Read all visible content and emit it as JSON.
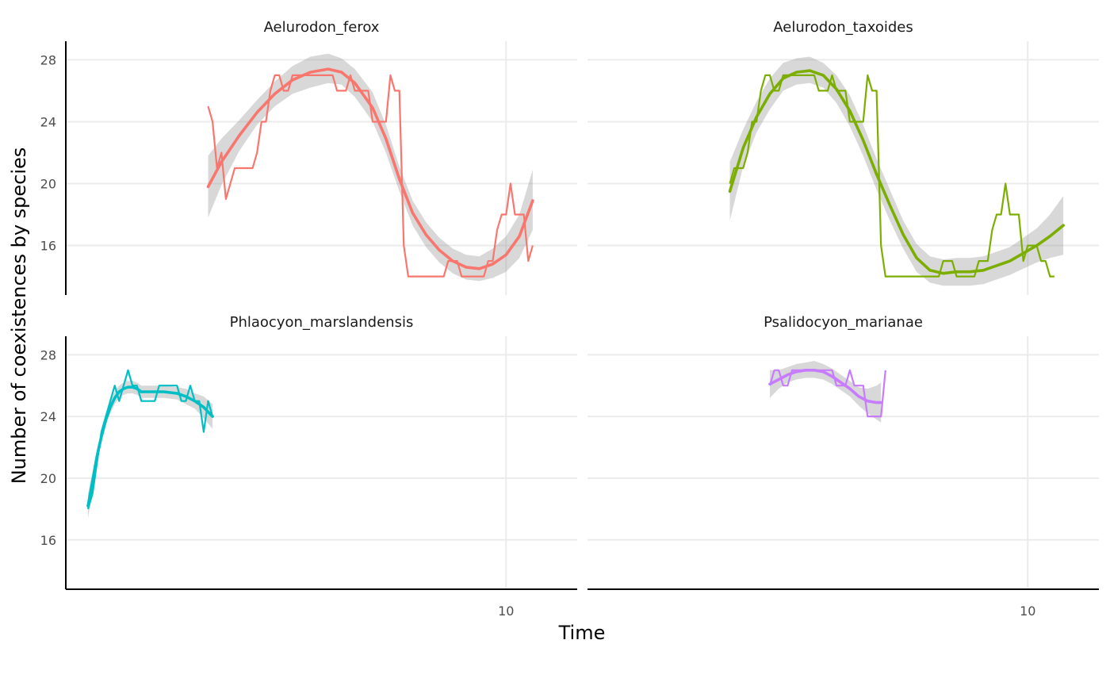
{
  "chart_data": {
    "type": "line",
    "xlabel": "Time",
    "ylabel": "Number of coexistences by species",
    "ylim": [
      12.8,
      29.2
    ],
    "y_ticks": [
      "16",
      "20",
      "24",
      "28"
    ],
    "y_tick_values": [
      16,
      20,
      24,
      28
    ],
    "x_ticks": [
      "10"
    ],
    "x_tick_values": [
      10
    ],
    "xlim": [
      0.1,
      11.6
    ],
    "grid": true,
    "legend": "none",
    "panels": [
      {
        "name": "Aelurodon_ferox",
        "color": "#F8766D",
        "raw": [
          [
            3.3,
            25
          ],
          [
            3.4,
            24
          ],
          [
            3.5,
            21
          ],
          [
            3.6,
            22
          ],
          [
            3.7,
            19
          ],
          [
            3.9,
            21
          ],
          [
            4.3,
            21
          ],
          [
            4.4,
            22
          ],
          [
            4.5,
            24
          ],
          [
            4.6,
            24
          ],
          [
            4.7,
            26
          ],
          [
            4.8,
            27
          ],
          [
            4.9,
            27
          ],
          [
            5.0,
            26
          ],
          [
            5.1,
            26
          ],
          [
            5.2,
            27
          ],
          [
            6.1,
            27
          ],
          [
            6.2,
            26
          ],
          [
            6.4,
            26
          ],
          [
            6.5,
            27
          ],
          [
            6.6,
            26
          ],
          [
            6.9,
            26
          ],
          [
            7.0,
            24
          ],
          [
            7.3,
            24
          ],
          [
            7.4,
            27
          ],
          [
            7.5,
            26
          ],
          [
            7.6,
            26
          ],
          [
            7.7,
            16
          ],
          [
            7.8,
            14
          ],
          [
            8.6,
            14
          ],
          [
            8.7,
            15
          ],
          [
            8.9,
            15
          ],
          [
            9.0,
            14
          ],
          [
            9.5,
            14
          ],
          [
            9.6,
            15
          ],
          [
            9.7,
            15
          ],
          [
            9.8,
            17
          ],
          [
            9.9,
            18
          ],
          [
            10.0,
            18
          ],
          [
            10.1,
            20
          ],
          [
            10.2,
            18
          ],
          [
            10.4,
            18
          ],
          [
            10.5,
            15
          ],
          [
            10.6,
            16
          ]
        ],
        "smooth": [
          [
            3.3,
            19.8
          ],
          [
            3.6,
            21.4
          ],
          [
            4.0,
            23.1
          ],
          [
            4.4,
            24.6
          ],
          [
            4.8,
            25.8
          ],
          [
            5.2,
            26.7
          ],
          [
            5.6,
            27.2
          ],
          [
            6.0,
            27.4
          ],
          [
            6.3,
            27.2
          ],
          [
            6.6,
            26.5
          ],
          [
            7.0,
            24.9
          ],
          [
            7.3,
            22.9
          ],
          [
            7.6,
            20.3
          ],
          [
            7.9,
            18.1
          ],
          [
            8.2,
            16.7
          ],
          [
            8.5,
            15.7
          ],
          [
            8.8,
            15.0
          ],
          [
            9.1,
            14.6
          ],
          [
            9.4,
            14.5
          ],
          [
            9.7,
            14.8
          ],
          [
            10.0,
            15.4
          ],
          [
            10.3,
            16.6
          ],
          [
            10.6,
            18.9
          ]
        ],
        "band": [
          [
            3.3,
            17.8,
            21.8
          ],
          [
            3.6,
            19.9,
            22.9
          ],
          [
            4.0,
            22.1,
            24.1
          ],
          [
            4.4,
            23.8,
            25.4
          ],
          [
            4.8,
            25.0,
            26.6
          ],
          [
            5.2,
            25.8,
            27.6
          ],
          [
            5.6,
            26.2,
            28.2
          ],
          [
            6.0,
            26.5,
            28.4
          ],
          [
            6.3,
            26.4,
            28.1
          ],
          [
            6.6,
            25.6,
            27.4
          ],
          [
            7.0,
            24.0,
            25.9
          ],
          [
            7.3,
            22.0,
            23.8
          ],
          [
            7.6,
            19.5,
            21.1
          ],
          [
            7.9,
            17.3,
            18.9
          ],
          [
            8.2,
            15.9,
            17.5
          ],
          [
            8.5,
            14.9,
            16.5
          ],
          [
            8.8,
            14.2,
            15.8
          ],
          [
            9.1,
            13.8,
            15.4
          ],
          [
            9.4,
            13.7,
            15.3
          ],
          [
            9.7,
            13.9,
            15.8
          ],
          [
            10.0,
            14.3,
            16.6
          ],
          [
            10.3,
            15.2,
            18.0
          ],
          [
            10.6,
            17.0,
            20.9
          ]
        ]
      },
      {
        "name": "Aelurodon_taxoides",
        "color": "#7CAE00",
        "raw": [
          [
            3.3,
            20
          ],
          [
            3.4,
            21
          ],
          [
            3.6,
            21
          ],
          [
            3.7,
            22
          ],
          [
            3.8,
            24
          ],
          [
            3.9,
            24
          ],
          [
            4.0,
            26
          ],
          [
            4.1,
            27
          ],
          [
            4.2,
            27
          ],
          [
            4.3,
            26
          ],
          [
            4.4,
            26
          ],
          [
            4.5,
            27
          ],
          [
            5.2,
            27
          ],
          [
            5.3,
            26
          ],
          [
            5.5,
            26
          ],
          [
            5.6,
            27
          ],
          [
            5.7,
            26
          ],
          [
            5.9,
            26
          ],
          [
            6.0,
            24
          ],
          [
            6.3,
            24
          ],
          [
            6.4,
            27
          ],
          [
            6.5,
            26
          ],
          [
            6.6,
            26
          ],
          [
            6.7,
            16
          ],
          [
            6.8,
            14
          ],
          [
            8.0,
            14
          ],
          [
            8.1,
            15
          ],
          [
            8.3,
            15
          ],
          [
            8.4,
            14
          ],
          [
            8.8,
            14
          ],
          [
            8.9,
            15
          ],
          [
            9.1,
            15
          ],
          [
            9.2,
            17
          ],
          [
            9.3,
            18
          ],
          [
            9.4,
            18
          ],
          [
            9.5,
            20
          ],
          [
            9.6,
            18
          ],
          [
            9.8,
            18
          ],
          [
            9.9,
            15
          ],
          [
            10.0,
            16
          ],
          [
            10.2,
            16
          ],
          [
            10.3,
            15
          ],
          [
            10.4,
            15
          ],
          [
            10.5,
            14
          ],
          [
            10.6,
            14
          ]
        ],
        "smooth": [
          [
            3.3,
            19.5
          ],
          [
            3.6,
            22.3
          ],
          [
            3.9,
            24.3
          ],
          [
            4.2,
            25.8
          ],
          [
            4.5,
            26.8
          ],
          [
            4.8,
            27.2
          ],
          [
            5.1,
            27.3
          ],
          [
            5.4,
            27.0
          ],
          [
            5.7,
            26.1
          ],
          [
            6.0,
            24.7
          ],
          [
            6.3,
            22.8
          ],
          [
            6.6,
            20.6
          ],
          [
            6.9,
            18.6
          ],
          [
            7.2,
            16.7
          ],
          [
            7.5,
            15.2
          ],
          [
            7.8,
            14.4
          ],
          [
            8.1,
            14.2
          ],
          [
            8.4,
            14.3
          ],
          [
            8.7,
            14.3
          ],
          [
            9.0,
            14.4
          ],
          [
            9.3,
            14.7
          ],
          [
            9.6,
            15.0
          ],
          [
            9.9,
            15.5
          ],
          [
            10.2,
            16.0
          ],
          [
            10.5,
            16.6
          ],
          [
            10.8,
            17.3
          ]
        ],
        "band": [
          [
            3.3,
            17.6,
            21.4
          ],
          [
            3.6,
            21.1,
            23.5
          ],
          [
            3.9,
            23.3,
            25.3
          ],
          [
            4.2,
            24.8,
            26.8
          ],
          [
            4.5,
            26.0,
            27.8
          ],
          [
            4.8,
            26.4,
            28.1
          ],
          [
            5.1,
            26.5,
            28.2
          ],
          [
            5.4,
            26.2,
            27.8
          ],
          [
            5.7,
            25.2,
            27.0
          ],
          [
            6.0,
            23.7,
            25.7
          ],
          [
            6.3,
            21.8,
            23.8
          ],
          [
            6.6,
            19.6,
            21.6
          ],
          [
            6.9,
            17.6,
            19.6
          ],
          [
            7.2,
            15.8,
            17.6
          ],
          [
            7.5,
            14.3,
            16.1
          ],
          [
            7.8,
            13.6,
            15.3
          ],
          [
            8.1,
            13.4,
            15.1
          ],
          [
            8.4,
            13.4,
            15.2
          ],
          [
            8.7,
            13.4,
            15.2
          ],
          [
            9.0,
            13.5,
            15.3
          ],
          [
            9.3,
            13.8,
            15.6
          ],
          [
            9.6,
            14.1,
            15.9
          ],
          [
            9.9,
            14.5,
            16.5
          ],
          [
            10.2,
            14.9,
            17.1
          ],
          [
            10.5,
            15.2,
            18.0
          ],
          [
            10.8,
            15.4,
            19.2
          ]
        ]
      },
      {
        "name": "Phlaocyon_marslandensis",
        "color": "#00BFC4",
        "raw": [
          [
            0.6,
            18
          ],
          [
            0.7,
            19
          ],
          [
            0.8,
            21
          ],
          [
            0.9,
            23
          ],
          [
            1.0,
            24
          ],
          [
            1.1,
            25
          ],
          [
            1.2,
            26
          ],
          [
            1.3,
            25
          ],
          [
            1.4,
            26
          ],
          [
            1.5,
            27
          ],
          [
            1.6,
            26
          ],
          [
            1.7,
            26
          ],
          [
            1.8,
            25
          ],
          [
            2.1,
            25
          ],
          [
            2.2,
            26
          ],
          [
            2.6,
            26
          ],
          [
            2.7,
            25
          ],
          [
            2.8,
            25
          ],
          [
            2.9,
            26
          ],
          [
            3.0,
            25
          ],
          [
            3.1,
            25
          ],
          [
            3.2,
            23
          ],
          [
            3.3,
            25
          ],
          [
            3.4,
            24
          ]
        ],
        "smooth": [
          [
            0.6,
            18.2
          ],
          [
            0.7,
            19.8
          ],
          [
            0.8,
            21.4
          ],
          [
            0.9,
            22.7
          ],
          [
            1.0,
            23.8
          ],
          [
            1.1,
            24.6
          ],
          [
            1.2,
            25.2
          ],
          [
            1.3,
            25.6
          ],
          [
            1.4,
            25.8
          ],
          [
            1.5,
            25.9
          ],
          [
            1.6,
            25.9
          ],
          [
            1.7,
            25.8
          ],
          [
            1.8,
            25.6
          ],
          [
            2.0,
            25.6
          ],
          [
            2.3,
            25.6
          ],
          [
            2.6,
            25.5
          ],
          [
            2.8,
            25.3
          ],
          [
            3.0,
            25.0
          ],
          [
            3.2,
            24.6
          ],
          [
            3.4,
            24.0
          ]
        ],
        "band": [
          [
            0.6,
            17.4,
            19.0
          ],
          [
            0.7,
            19.2,
            20.4
          ],
          [
            0.8,
            20.9,
            21.9
          ],
          [
            0.9,
            22.3,
            23.1
          ],
          [
            1.0,
            23.4,
            24.2
          ],
          [
            1.1,
            24.2,
            25.0
          ],
          [
            1.2,
            24.8,
            25.6
          ],
          [
            1.3,
            25.2,
            26.0
          ],
          [
            1.4,
            25.4,
            26.2
          ],
          [
            1.5,
            25.5,
            26.3
          ],
          [
            1.6,
            25.5,
            26.3
          ],
          [
            1.7,
            25.4,
            26.2
          ],
          [
            1.8,
            25.2,
            26.0
          ],
          [
            2.0,
            25.2,
            26.0
          ],
          [
            2.3,
            25.2,
            26.0
          ],
          [
            2.6,
            25.1,
            25.9
          ],
          [
            2.8,
            24.8,
            25.8
          ],
          [
            3.0,
            24.5,
            25.5
          ],
          [
            3.2,
            23.9,
            25.3
          ],
          [
            3.4,
            23.2,
            24.8
          ]
        ]
      },
      {
        "name": "Psalidocyon_marianae",
        "color": "#C77CFF",
        "raw": [
          [
            4.2,
            26
          ],
          [
            4.3,
            27
          ],
          [
            4.4,
            27
          ],
          [
            4.5,
            26
          ],
          [
            4.6,
            26
          ],
          [
            4.7,
            27
          ],
          [
            5.6,
            27
          ],
          [
            5.7,
            26
          ],
          [
            5.9,
            26
          ],
          [
            6.0,
            27
          ],
          [
            6.1,
            26
          ],
          [
            6.3,
            26
          ],
          [
            6.4,
            24
          ],
          [
            6.7,
            24
          ],
          [
            6.8,
            27
          ]
        ],
        "smooth": [
          [
            4.2,
            26.1
          ],
          [
            4.4,
            26.4
          ],
          [
            4.6,
            26.7
          ],
          [
            4.8,
            26.9
          ],
          [
            5.0,
            27.0
          ],
          [
            5.2,
            27.0
          ],
          [
            5.4,
            26.9
          ],
          [
            5.6,
            26.6
          ],
          [
            5.8,
            26.2
          ],
          [
            6.0,
            25.8
          ],
          [
            6.2,
            25.3
          ],
          [
            6.4,
            25.0
          ],
          [
            6.6,
            24.9
          ],
          [
            6.7,
            24.9
          ]
        ],
        "band": [
          [
            4.2,
            25.2,
            27.0
          ],
          [
            4.4,
            25.8,
            27.0
          ],
          [
            4.6,
            26.2,
            27.2
          ],
          [
            4.8,
            26.4,
            27.4
          ],
          [
            5.0,
            26.5,
            27.5
          ],
          [
            5.2,
            26.5,
            27.6
          ],
          [
            5.4,
            26.4,
            27.4
          ],
          [
            5.6,
            26.1,
            27.1
          ],
          [
            5.8,
            25.7,
            26.7
          ],
          [
            6.0,
            25.3,
            26.3
          ],
          [
            6.2,
            24.7,
            25.9
          ],
          [
            6.4,
            24.2,
            25.8
          ],
          [
            6.6,
            23.8,
            26.0
          ],
          [
            6.7,
            23.6,
            26.2
          ]
        ]
      }
    ]
  }
}
